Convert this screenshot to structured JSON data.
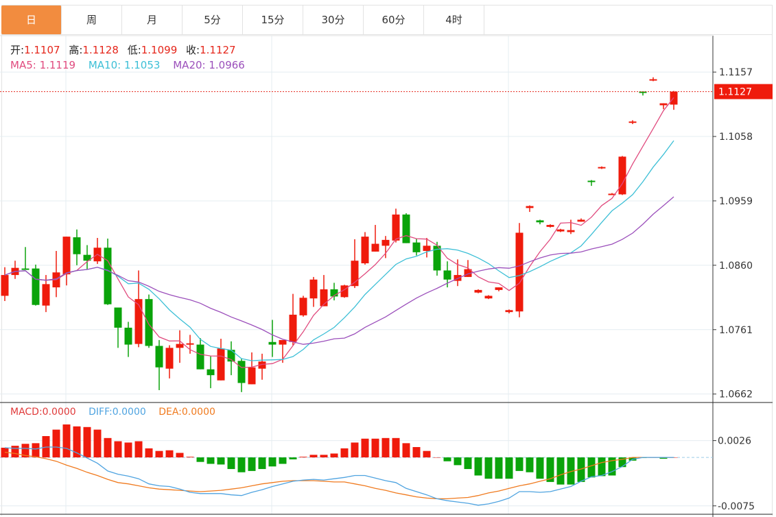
{
  "tabs": [
    {
      "label": "日",
      "active": true
    },
    {
      "label": "周"
    },
    {
      "label": "月"
    },
    {
      "label": "5分"
    },
    {
      "label": "15分"
    },
    {
      "label": "30分"
    },
    {
      "label": "60分"
    },
    {
      "label": "4时"
    }
  ],
  "ohlc_legend": {
    "open_label": "开:",
    "open": "1.1107",
    "high_label": "高:",
    "high": "1.1128",
    "low_label": "低:",
    "low": "1.1099",
    "close_label": "收:",
    "close": "1.1127"
  },
  "ma_legend": {
    "ma5": "MA5: 1.1119",
    "ma10": "MA10: 1.1053",
    "ma20": "MA20: 1.0966"
  },
  "macd_legend": {
    "macd": "MACD:0.0000",
    "diff": "DIFF:0.0000",
    "dea": "DEA:0.0000"
  },
  "colors": {
    "active_tab": "#f28c3f",
    "up": "#ef1b0c",
    "down": "#0aa30a",
    "ma5": "#e04a7e",
    "ma10": "#3cbfd6",
    "ma20": "#9b4fbb",
    "diff": "#4ea3e0",
    "dea": "#f07a1e",
    "macd_label": "#e03a3a",
    "grid": "#e4ecf0"
  },
  "chart_data": {
    "type": "candlestick",
    "title": "",
    "current_price": "1.1127",
    "price_axis": {
      "ticks": [
        "1.1157",
        "1.1058",
        "1.0959",
        "1.0860",
        "1.0761",
        "1.0662"
      ],
      "ylim": [
        1.0649,
        1.1213
      ]
    },
    "macd_axis": {
      "ticks": [
        "0.0026",
        "-0.0075"
      ],
      "ylim": [
        -0.0088,
        0.0085
      ]
    },
    "ma_periods": [
      5,
      10,
      20
    ],
    "candles_ohlc": [
      [
        1.0813,
        1.0857,
        1.0805,
        1.0845
      ],
      [
        1.0845,
        1.0867,
        1.0839,
        1.0856
      ],
      [
        1.0855,
        1.0888,
        1.0853,
        1.0854
      ],
      [
        1.0855,
        1.0861,
        1.0798,
        1.0799
      ],
      [
        1.0798,
        1.0845,
        1.0788,
        1.0831
      ],
      [
        1.0826,
        1.0882,
        1.0811,
        1.0849
      ],
      [
        1.0846,
        1.0904,
        1.0829,
        1.0904
      ],
      [
        1.0903,
        1.0915,
        1.086,
        1.0877
      ],
      [
        1.0876,
        1.0891,
        1.0854,
        1.0867
      ],
      [
        1.0866,
        1.0902,
        1.0862,
        1.0887
      ],
      [
        1.0887,
        1.0901,
        1.0799,
        1.08
      ],
      [
        1.0795,
        1.0795,
        1.0733,
        1.0764
      ],
      [
        1.0764,
        1.0773,
        1.0719,
        1.0738
      ],
      [
        1.0739,
        1.0852,
        1.0734,
        1.0808
      ],
      [
        1.0808,
        1.0815,
        1.0733,
        1.0736
      ],
      [
        1.0736,
        1.0745,
        1.0668,
        1.0703
      ],
      [
        1.0701,
        1.0737,
        1.0686,
        1.0733
      ],
      [
        1.0733,
        1.076,
        1.071,
        1.0739
      ],
      [
        1.0738,
        1.0753,
        1.0724,
        1.074
      ],
      [
        1.0738,
        1.0748,
        1.07,
        1.07
      ],
      [
        1.07,
        1.072,
        1.0671,
        1.0691
      ],
      [
        1.0683,
        1.0747,
        1.0683,
        1.0732
      ],
      [
        1.073,
        1.0743,
        1.0691,
        1.0712
      ],
      [
        1.0713,
        1.0716,
        1.0665,
        1.0679
      ],
      [
        1.0677,
        1.0726,
        1.0677,
        1.0703
      ],
      [
        1.0701,
        1.0724,
        1.0684,
        1.0712
      ],
      [
        1.0742,
        1.0776,
        1.0719,
        1.0738
      ],
      [
        1.0738,
        1.0745,
        1.071,
        1.0745
      ],
      [
        1.0742,
        1.0816,
        1.0737,
        1.0784
      ],
      [
        1.0783,
        1.0813,
        1.0781,
        1.081
      ],
      [
        1.0809,
        1.0842,
        1.0796,
        1.0838
      ],
      [
        1.0797,
        1.0845,
        1.0797,
        1.0823
      ],
      [
        1.0823,
        1.0833,
        1.0806,
        1.0812
      ],
      [
        1.0811,
        1.083,
        1.081,
        1.0829
      ],
      [
        1.0828,
        1.09,
        1.0825,
        1.0867
      ],
      [
        1.0863,
        1.0911,
        1.0861,
        1.0904
      ],
      [
        1.0881,
        1.0922,
        1.0881,
        1.0893
      ],
      [
        1.089,
        1.0905,
        1.0871,
        1.0899
      ],
      [
        1.0898,
        1.0947,
        1.0895,
        1.0938
      ],
      [
        1.0938,
        1.094,
        1.0894,
        1.0894
      ],
      [
        1.0895,
        1.0901,
        1.0875,
        1.088
      ],
      [
        1.0882,
        1.0902,
        1.0872,
        1.089
      ],
      [
        1.089,
        1.0896,
        1.0844,
        1.0852
      ],
      [
        1.0852,
        1.0866,
        1.0826,
        1.0838
      ],
      [
        1.0836,
        1.0869,
        1.0828,
        1.0845
      ],
      [
        1.0842,
        1.0868,
        1.0842,
        1.0854
      ],
      [
        1.0818,
        1.0823,
        1.0817,
        1.0822
      ],
      [
        1.0809,
        1.0814,
        1.0808,
        1.0813
      ],
      [
        1.0822,
        1.0826,
        1.082,
        1.0826
      ],
      [
        1.0788,
        1.0792,
        1.0786,
        1.0791
      ],
      [
        1.0789,
        1.0925,
        1.078,
        1.091
      ],
      [
        1.0948,
        1.0952,
        1.0942,
        1.0951
      ],
      [
        1.0929,
        1.093,
        1.0923,
        1.0926
      ],
      [
        1.0919,
        1.0923,
        1.0918,
        1.0922
      ],
      [
        1.0912,
        1.0916,
        1.0911,
        1.0915
      ],
      [
        1.0911,
        1.093,
        1.0908,
        1.0914
      ],
      [
        1.0927,
        1.0932,
        1.0927,
        1.093
      ],
      [
        1.099,
        1.0991,
        1.0982,
        1.0989
      ],
      [
        1.1009,
        1.1012,
        1.1008,
        1.1011
      ],
      [
        1.0969,
        1.0971,
        1.0968,
        1.097
      ],
      [
        1.0969,
        1.1028,
        1.0968,
        1.1027
      ],
      [
        1.1079,
        1.1083,
        1.1077,
        1.1081
      ],
      [
        1.1127,
        1.1127,
        1.1121,
        1.1126
      ],
      [
        1.1144,
        1.1149,
        1.1143,
        1.1146
      ],
      [
        1.1106,
        1.1109,
        1.11,
        1.1109
      ],
      [
        1.1107,
        1.1128,
        1.1099,
        1.1127
      ]
    ],
    "macd_hist": [
      0.0015,
      0.0018,
      0.0021,
      0.0022,
      0.0033,
      0.0043,
      0.0051,
      0.0048,
      0.0047,
      0.0043,
      0.003,
      0.0025,
      0.0023,
      0.0025,
      0.0014,
      0.001,
      0.0011,
      0.0007,
      0.0001,
      -0.0007,
      -0.001,
      -0.0011,
      -0.0018,
      -0.0023,
      -0.0021,
      -0.0018,
      -0.0014,
      -0.001,
      -0.0003,
      0.0001,
      0.0004,
      0.0004,
      0.0006,
      0.0014,
      0.0023,
      0.0029,
      0.0029,
      0.003,
      0.003,
      0.0022,
      0.0016,
      0.001,
      0.0,
      -0.0006,
      -0.0012,
      -0.0018,
      -0.0028,
      -0.0033,
      -0.0033,
      -0.0033,
      -0.0021,
      -0.0023,
      -0.0033,
      -0.0038,
      -0.0042,
      -0.0042,
      -0.0038,
      -0.0031,
      -0.0029,
      -0.0028,
      -0.0015,
      -0.0005,
      -0.0001,
      0.0,
      -0.0002,
      0.0
    ],
    "diff": [
      0.0015,
      0.0014,
      0.0014,
      0.0013,
      0.0016,
      0.0016,
      0.0014,
      0.0007,
      -0.0001,
      -0.0009,
      -0.0021,
      -0.0026,
      -0.0029,
      -0.0033,
      -0.0041,
      -0.0044,
      -0.0045,
      -0.0049,
      -0.0054,
      -0.0056,
      -0.0056,
      -0.0056,
      -0.0058,
      -0.0059,
      -0.0054,
      -0.005,
      -0.0045,
      -0.0041,
      -0.0037,
      -0.0035,
      -0.0034,
      -0.0035,
      -0.0033,
      -0.0031,
      -0.0028,
      -0.0028,
      -0.0032,
      -0.0036,
      -0.0039,
      -0.0048,
      -0.0053,
      -0.0058,
      -0.0064,
      -0.0067,
      -0.0069,
      -0.0071,
      -0.0074,
      -0.0072,
      -0.0068,
      -0.0063,
      -0.0053,
      -0.0053,
      -0.0054,
      -0.0053,
      -0.0049,
      -0.0045,
      -0.0037,
      -0.003,
      -0.0028,
      -0.0022,
      -0.0014,
      -0.0003,
      0.0,
      0.0,
      0.0,
      0.0
    ],
    "dea": [
      0.0008,
      0.0006,
      0.0003,
      0.0001,
      -0.0002,
      -0.0006,
      -0.0012,
      -0.0017,
      -0.0023,
      -0.0028,
      -0.0034,
      -0.0039,
      -0.0041,
      -0.0044,
      -0.0047,
      -0.0049,
      -0.005,
      -0.0051,
      -0.0052,
      -0.0053,
      -0.0052,
      -0.0051,
      -0.0049,
      -0.0047,
      -0.0044,
      -0.0041,
      -0.0039,
      -0.0037,
      -0.0036,
      -0.0036,
      -0.0036,
      -0.0037,
      -0.0038,
      -0.0038,
      -0.0041,
      -0.0044,
      -0.0048,
      -0.0051,
      -0.0055,
      -0.0058,
      -0.0061,
      -0.0063,
      -0.0064,
      -0.0064,
      -0.0063,
      -0.0062,
      -0.0059,
      -0.0055,
      -0.0052,
      -0.0048,
      -0.0044,
      -0.0041,
      -0.0037,
      -0.0033,
      -0.0027,
      -0.0022,
      -0.0018,
      -0.0013,
      -0.0008,
      -0.0005,
      -0.0003,
      0.0,
      0.0,
      0.0,
      0.0,
      0.0
    ]
  }
}
